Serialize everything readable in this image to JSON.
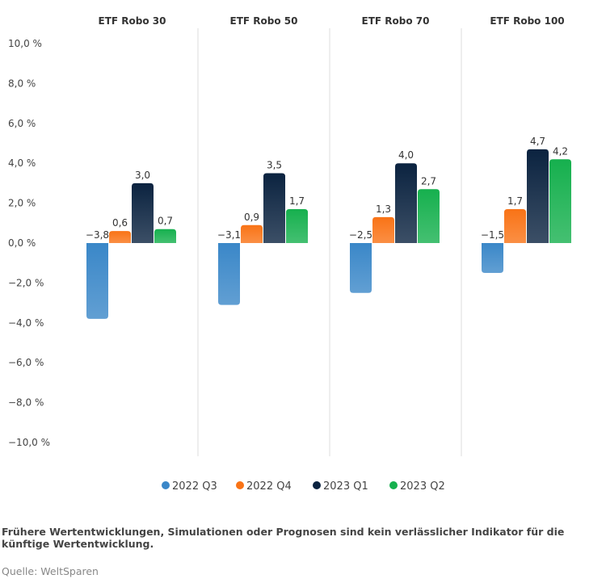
{
  "chart_data": {
    "type": "bar",
    "panels": [
      "ETF Robo 30",
      "ETF Robo 50",
      "ETF Robo 70",
      "ETF Robo 100"
    ],
    "series": [
      {
        "name": "2022 Q3",
        "color": "#3a87c8",
        "values": [
          -3.8,
          -3.1,
          -2.5,
          -1.5
        ],
        "labels": [
          "−3,8",
          "−3,1",
          "−2,5",
          "−1,5"
        ]
      },
      {
        "name": "2022 Q4",
        "color": "#f97316",
        "values": [
          0.6,
          0.9,
          1.3,
          1.7
        ],
        "labels": [
          "0,6",
          "0,9",
          "1,3",
          "1,7"
        ]
      },
      {
        "name": "2023 Q1",
        "color": "#0b2340",
        "values": [
          3.0,
          3.5,
          4.0,
          4.7
        ],
        "labels": [
          "3,0",
          "3,5",
          "4,0",
          "4,7"
        ]
      },
      {
        "name": "2023 Q2",
        "color": "#16b04e",
        "values": [
          0.7,
          1.7,
          2.7,
          4.2
        ],
        "labels": [
          "0,7",
          "1,7",
          "2,7",
          "4,2"
        ]
      }
    ],
    "ylim": [
      -10,
      10
    ],
    "yticks": [
      10,
      8,
      6,
      4,
      2,
      0,
      -2,
      -4,
      -6,
      -8,
      -10
    ],
    "ytick_labels": [
      "10,0 %",
      "8,0 %",
      "6,0 %",
      "4,0 %",
      "2,0 %",
      "0,0 %",
      "−2,0 %",
      "−4,0 %",
      "−6,0 %",
      "−8,0 %",
      "−10,0 %"
    ],
    "legend": "bottom-center"
  },
  "footer": {
    "note": "Frühere Wertentwicklungen, Simulationen oder Prognosen sind kein verlässlicher Indikator für die künftige Wertentwicklung.",
    "source": "Quelle: WeltSparen"
  }
}
